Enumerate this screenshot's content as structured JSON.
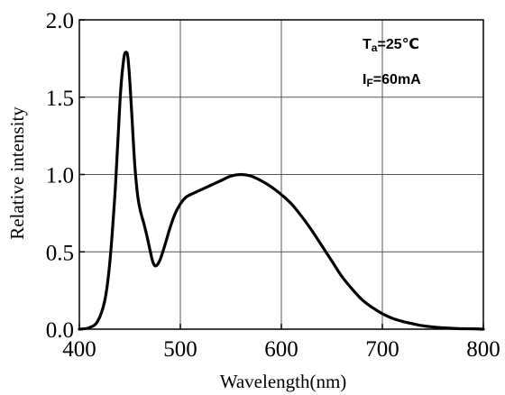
{
  "chart_data": {
    "type": "line",
    "title": "",
    "xlabel": "Wavelength(nm)",
    "ylabel": "Relative intensity",
    "xlim": [
      400,
      800
    ],
    "ylim": [
      0.0,
      2.0
    ],
    "grid": true,
    "x_ticks": [
      "400",
      "500",
      "600",
      "700",
      "800"
    ],
    "y_ticks": [
      "0.0",
      "0.5",
      "1.0",
      "1.5",
      "2.0"
    ],
    "annotations": [
      {
        "main": "T",
        "sub": "a",
        "rest": "=25℃"
      },
      {
        "main": "I",
        "sub": "F",
        "rest": "=60mA"
      }
    ],
    "series": [
      {
        "color": "#000000",
        "x": [
          400,
          410,
          418,
          425,
          430,
          435,
          438,
          441,
          444,
          446,
          448,
          450,
          452,
          455,
          458,
          461,
          464,
          467,
          470,
          473,
          476,
          480,
          485,
          490,
          495,
          500,
          505,
          510,
          520,
          530,
          540,
          550,
          560,
          570,
          580,
          590,
          600,
          610,
          620,
          630,
          640,
          650,
          660,
          670,
          680,
          690,
          700,
          710,
          720,
          730,
          740,
          750,
          760,
          770,
          780,
          790,
          800
        ],
        "y": [
          0.0,
          0.01,
          0.05,
          0.18,
          0.42,
          0.85,
          1.2,
          1.55,
          1.75,
          1.79,
          1.76,
          1.6,
          1.38,
          1.05,
          0.85,
          0.75,
          0.68,
          0.6,
          0.51,
          0.43,
          0.41,
          0.45,
          0.55,
          0.66,
          0.75,
          0.81,
          0.85,
          0.87,
          0.9,
          0.93,
          0.96,
          0.99,
          1.0,
          0.99,
          0.96,
          0.92,
          0.87,
          0.81,
          0.73,
          0.64,
          0.54,
          0.44,
          0.34,
          0.26,
          0.19,
          0.14,
          0.1,
          0.07,
          0.05,
          0.035,
          0.022,
          0.014,
          0.009,
          0.005,
          0.003,
          0.002,
          0.0
        ]
      }
    ]
  }
}
